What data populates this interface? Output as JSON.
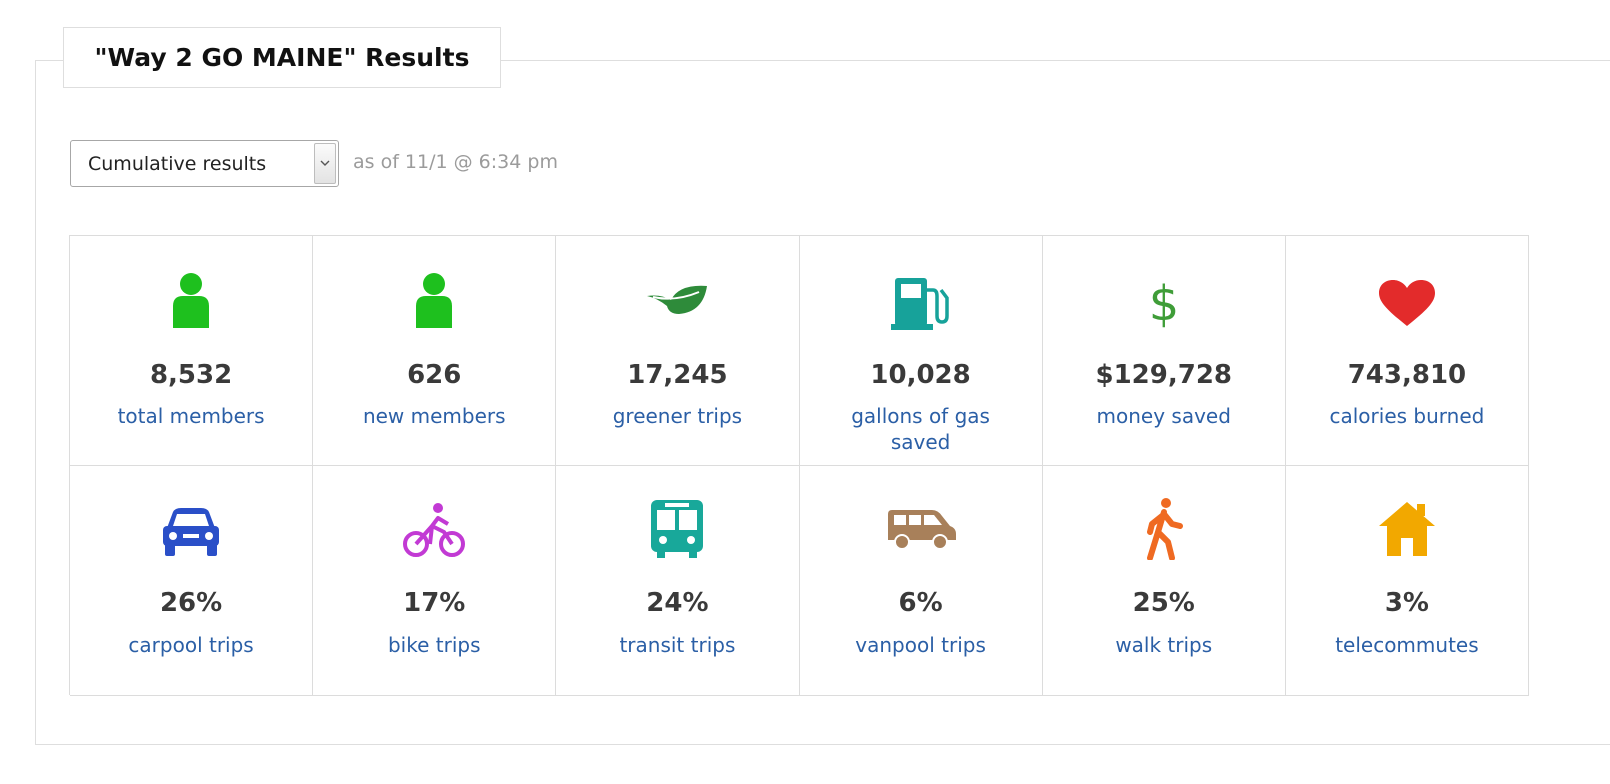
{
  "panel": {
    "title": "\"Way 2 GO MAINE\" Results"
  },
  "filter": {
    "selected": "Cumulative results",
    "as_of": "as of 11/1 @ 6:34 pm"
  },
  "stats_row1": [
    {
      "icon": "person-icon",
      "color": "#1ec01e",
      "value": "8,532",
      "label": "total members"
    },
    {
      "icon": "person-icon",
      "color": "#1ec01e",
      "value": "626",
      "label": "new members"
    },
    {
      "icon": "leaf-icon",
      "color": "#2e8b3a",
      "value": "17,245",
      "label": "greener trips"
    },
    {
      "icon": "gas-pump-icon",
      "color": "#17a29a",
      "value": "10,028",
      "label": "gallons of gas saved"
    },
    {
      "icon": "dollar-icon",
      "color": "#3f9d38",
      "value": "$129,728",
      "label": "money saved"
    },
    {
      "icon": "heart-icon",
      "color": "#e32b2b",
      "value": "743,810",
      "label": "calories burned"
    }
  ],
  "stats_row2": [
    {
      "icon": "car-icon",
      "color": "#2a4fc8",
      "value": "26%",
      "label": "carpool trips"
    },
    {
      "icon": "bike-icon",
      "color": "#c23ad4",
      "value": "17%",
      "label": "bike trips"
    },
    {
      "icon": "bus-icon",
      "color": "#18a89a",
      "value": "24%",
      "label": "transit trips"
    },
    {
      "icon": "van-icon",
      "color": "#a8805a",
      "value": "6%",
      "label": "vanpool trips"
    },
    {
      "icon": "walk-icon",
      "color": "#ef6a22",
      "value": "25%",
      "label": "walk trips"
    },
    {
      "icon": "house-icon",
      "color": "#f2a800",
      "value": "3%",
      "label": "telecommutes"
    }
  ]
}
